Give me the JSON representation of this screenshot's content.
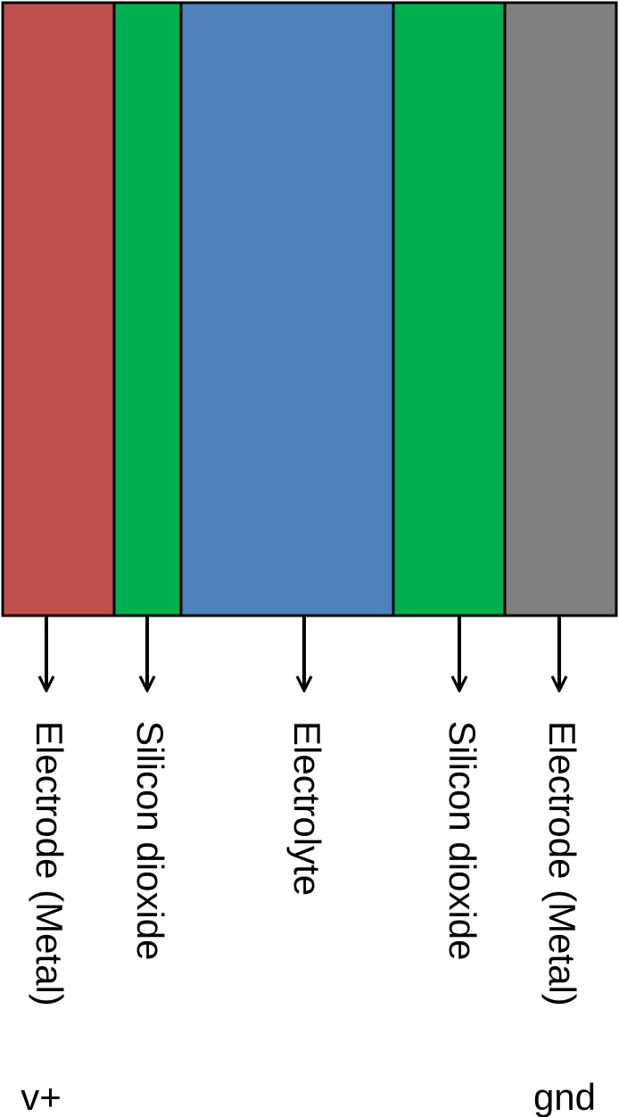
{
  "layers": [
    {
      "label": "Electrode (Metal)"
    },
    {
      "label": "Silicon dioxide"
    },
    {
      "label": "Electrolyte"
    },
    {
      "label": "Silicon dioxide"
    },
    {
      "label": "Electrode (Metal)"
    }
  ],
  "terminals": {
    "left": "v+",
    "right": "gnd"
  }
}
